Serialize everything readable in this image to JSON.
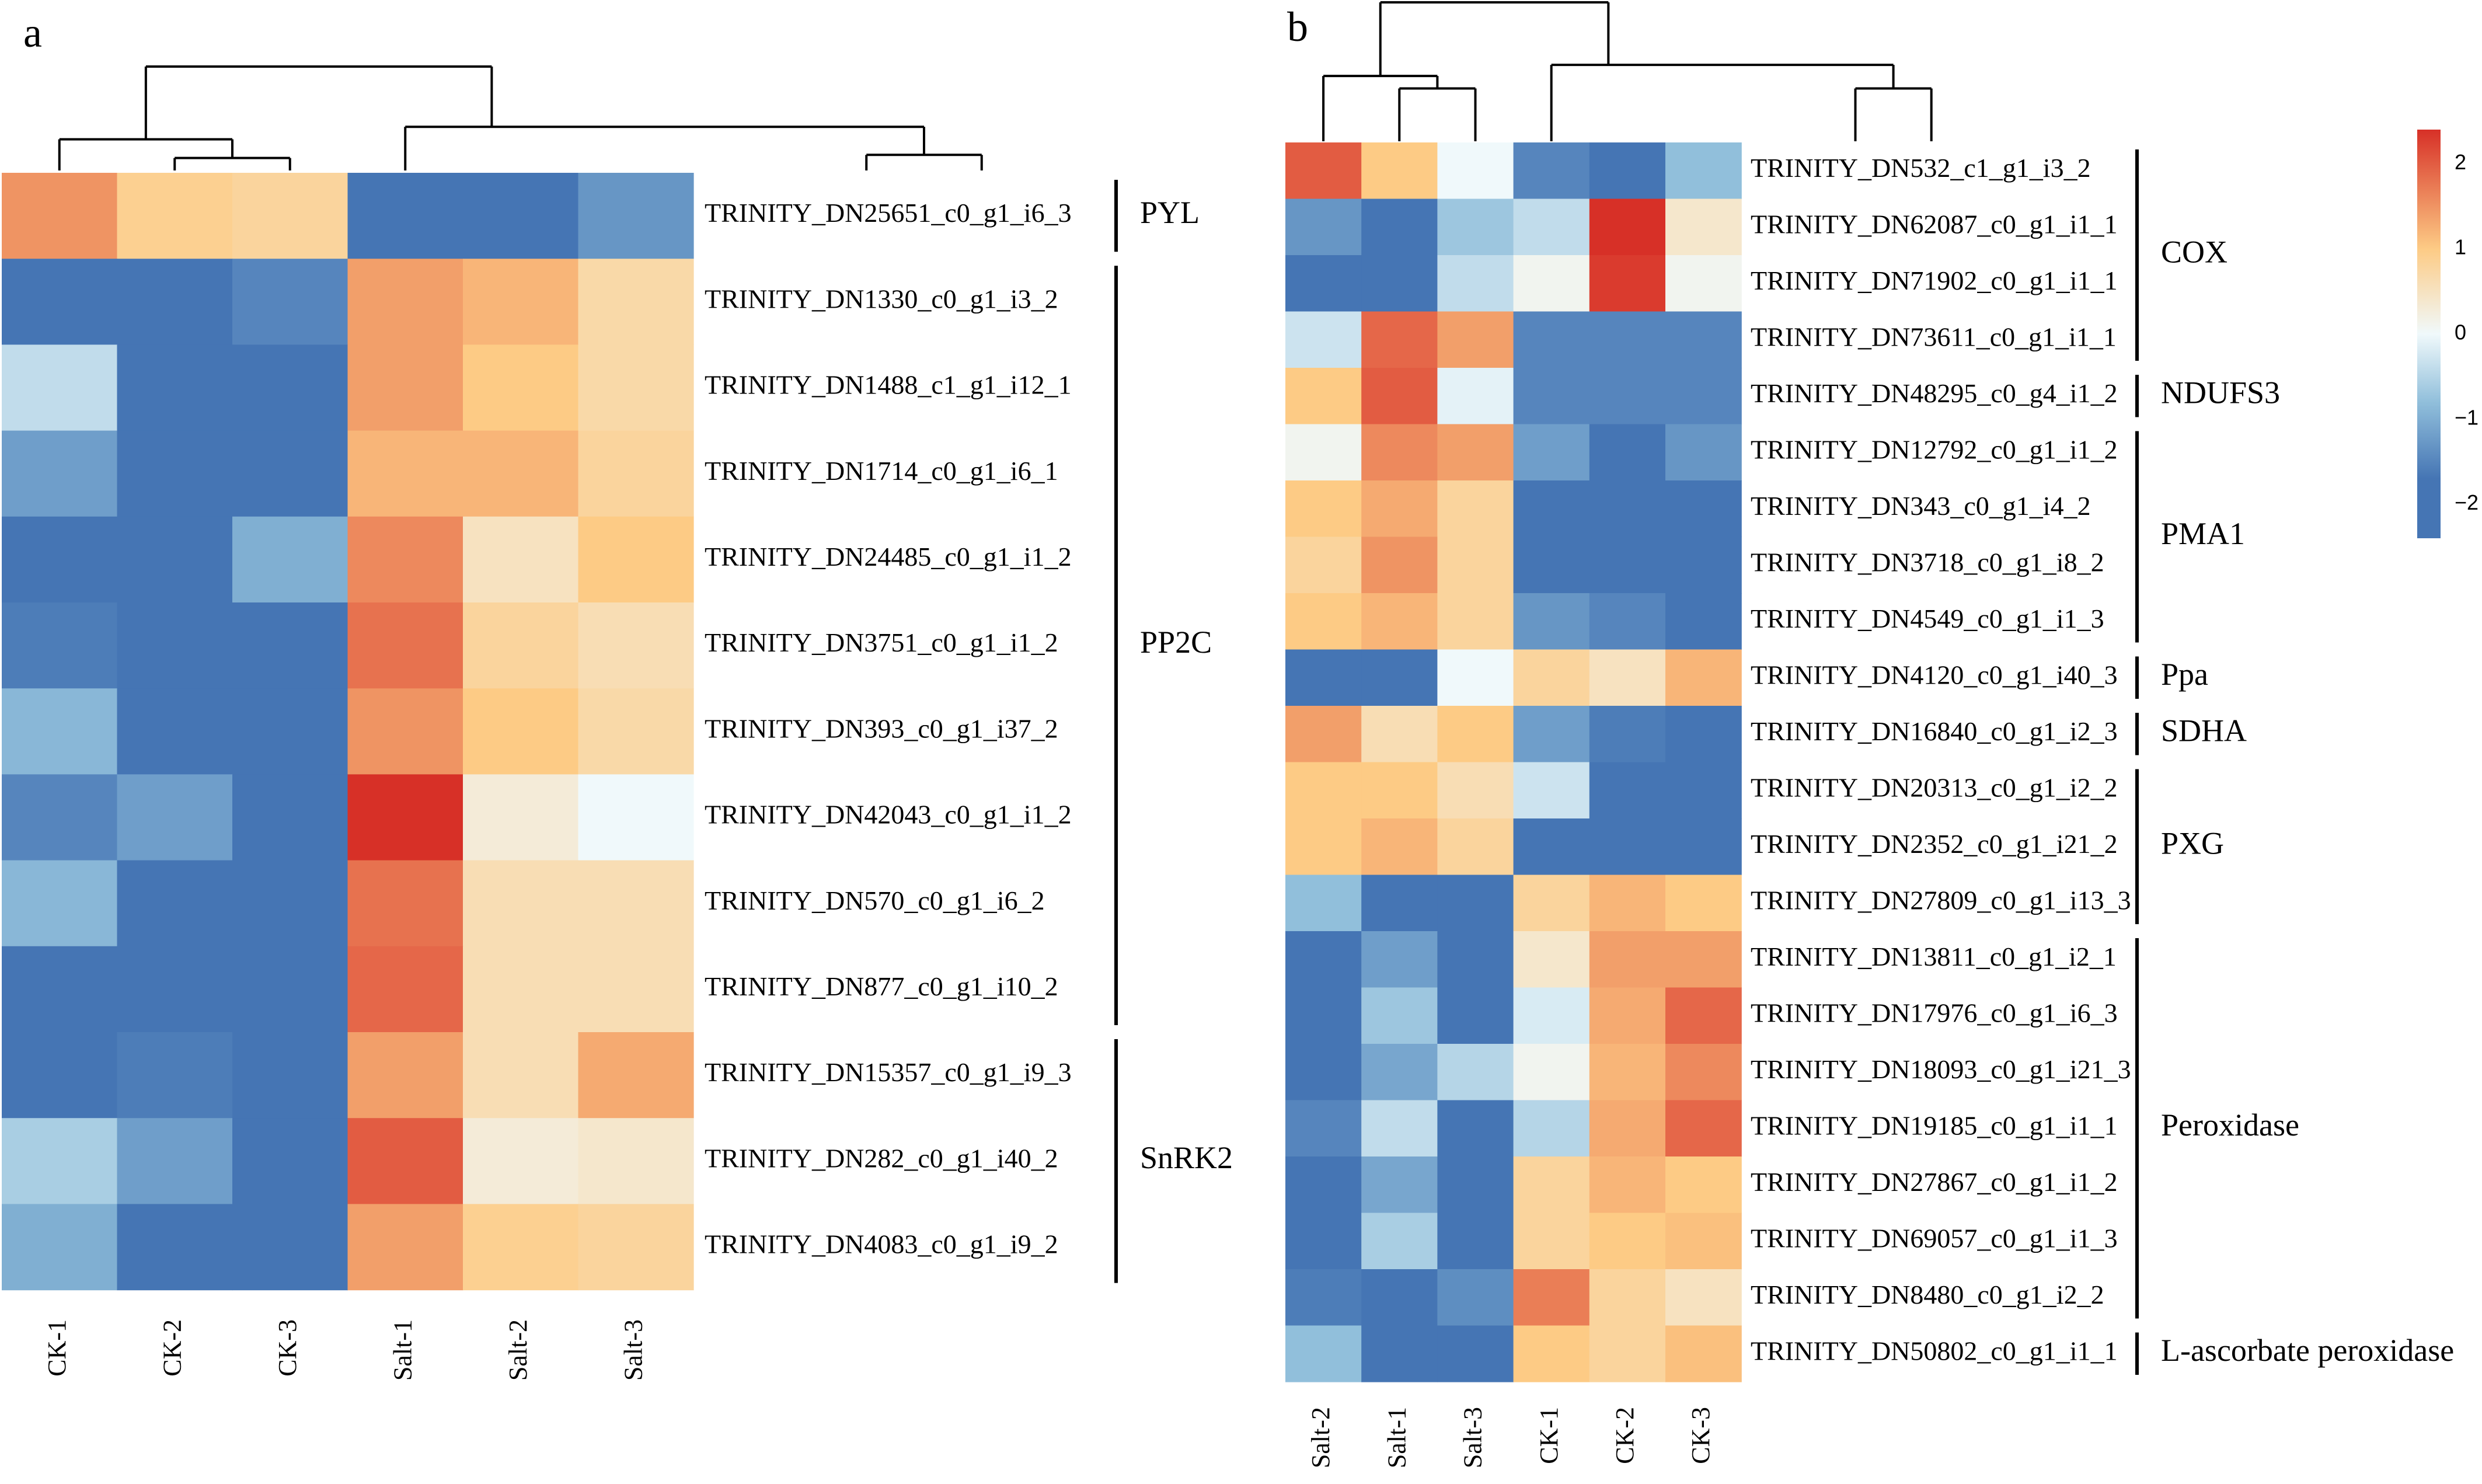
{
  "chart_data": [
    {
      "type": "heatmap",
      "panel": "a",
      "title": "",
      "columns": [
        "CK-1",
        "CK-2",
        "CK-3",
        "Salt-1",
        "Salt-2",
        "Salt-3"
      ],
      "rows": [
        "TRINITY_DN25651_c0_g1_i6_3",
        "TRINITY_DN1330_c0_g1_i3_2",
        "TRINITY_DN1488_c1_g1_i12_1",
        "TRINITY_DN1714_c0_g1_i6_1",
        "TRINITY_DN24485_c0_g1_i1_2",
        "TRINITY_DN3751_c0_g1_i1_2",
        "TRINITY_DN393_c0_g1_i37_2",
        "TRINITY_DN42043_c0_g1_i1_2",
        "TRINITY_DN570_c0_g1_i6_2",
        "TRINITY_DN877_c0_g1_i10_2",
        "TRINITY_DN15357_c0_g1_i9_3",
        "TRINITY_DN282_c0_g1_i40_2",
        "TRINITY_DN4083_c0_g1_i9_2"
      ],
      "values": [
        [
          1.5,
          0.9,
          0.8,
          -2.1,
          -2.1,
          -1.3
        ],
        [
          -2.1,
          -1.8,
          -1.5,
          1.4,
          1.2,
          0.7
        ],
        [
          -0.4,
          -2.1,
          -2.2,
          1.4,
          1.0,
          0.7
        ],
        [
          -1.2,
          -2.1,
          -2.1,
          1.2,
          1.2,
          0.8
        ],
        [
          -2.1,
          -2.1,
          -1.0,
          1.6,
          0.5,
          1.0
        ],
        [
          -1.6,
          -2.1,
          -1.8,
          1.8,
          0.8,
          0.6
        ],
        [
          -0.9,
          -2.1,
          -2.2,
          1.5,
          1.0,
          0.7
        ],
        [
          -1.5,
          -1.2,
          -1.8,
          2.4,
          0.3,
          0.0
        ],
        [
          -0.9,
          -2.1,
          -1.8,
          1.8,
          0.6,
          0.6
        ],
        [
          -1.9,
          -2.1,
          -1.7,
          1.9,
          0.6,
          0.6
        ],
        [
          -1.9,
          -1.6,
          -2.1,
          1.4,
          0.6,
          1.3
        ],
        [
          -0.6,
          -1.2,
          -2.1,
          2.0,
          0.3,
          0.4
        ],
        [
          -1.0,
          -2.1,
          -2.1,
          1.4,
          0.9,
          0.8
        ]
      ],
      "groups": [
        {
          "label": "PYL",
          "start": 0,
          "end": 0
        },
        {
          "label": "PP2C",
          "start": 1,
          "end": 9
        },
        {
          "label": "SnRK2",
          "start": 10,
          "end": 12
        }
      ],
      "col_dendrogram": "((CK-1,(CK-2,CK-3)),(Salt-1,(Salt-2,Salt-3)))"
    },
    {
      "type": "heatmap",
      "panel": "b",
      "title": "",
      "columns": [
        "Salt-2",
        "Salt-1",
        "Salt-3",
        "CK-1",
        "CK-2",
        "CK-3"
      ],
      "rows": [
        "TRINITY_DN532_c1_g1_i3_2",
        "TRINITY_DN62087_c0_g1_i1_1",
        "TRINITY_DN71902_c0_g1_i1_1",
        "TRINITY_DN73611_c0_g1_i1_1",
        "TRINITY_DN48295_c0_g4_i1_2",
        "TRINITY_DN12792_c0_g1_i1_2",
        "TRINITY_DN343_c0_g1_i4_2",
        "TRINITY_DN3718_c0_g1_i8_2",
        "TRINITY_DN4549_c0_g1_i1_3",
        "TRINITY_DN4120_c0_g1_i40_3",
        "TRINITY_DN16840_c0_g1_i2_3",
        "TRINITY_DN20313_c0_g1_i2_2",
        "TRINITY_DN2352_c0_g1_i21_2",
        "TRINITY_DN27809_c0_g1_i13_3",
        "TRINITY_DN13811_c0_g1_i2_1",
        "TRINITY_DN17976_c0_g1_i6_3",
        "TRINITY_DN18093_c0_g1_i21_3",
        "TRINITY_DN19185_c0_g1_i1_1",
        "TRINITY_DN27867_c0_g1_i1_2",
        "TRINITY_DN69057_c0_g1_i1_3",
        "TRINITY_DN8480_c0_g1_i2_2",
        "TRINITY_DN50802_c0_g1_i1_1"
      ],
      "values": [
        [
          2.0,
          1.0,
          0.0,
          -1.5,
          -2.1,
          -0.8
        ],
        [
          -1.3,
          -1.7,
          -0.7,
          -0.4,
          2.4,
          0.4
        ],
        [
          -2.1,
          -1.8,
          -0.4,
          0.1,
          2.3,
          0.1
        ],
        [
          -0.3,
          1.9,
          1.4,
          -1.5,
          -1.5,
          -1.5
        ],
        [
          1.0,
          2.0,
          -0.1,
          -1.5,
          -1.5,
          -1.5
        ],
        [
          0.1,
          1.6,
          1.4,
          -1.2,
          -2.1,
          -1.3
        ],
        [
          1.0,
          1.3,
          0.8,
          -1.7,
          -2.1,
          -2.1
        ],
        [
          0.8,
          1.5,
          0.8,
          -1.7,
          -2.1,
          -2.1
        ],
        [
          1.0,
          1.2,
          0.8,
          -1.3,
          -1.5,
          -2.1
        ],
        [
          -2.1,
          -1.7,
          0.0,
          0.8,
          0.5,
          1.2
        ],
        [
          1.4,
          0.6,
          1.0,
          -1.2,
          -1.6,
          -2.1
        ],
        [
          1.0,
          1.0,
          0.6,
          -0.3,
          -2.1,
          -2.1
        ],
        [
          1.0,
          1.2,
          0.8,
          -2.0,
          -2.0,
          -1.7
        ],
        [
          -0.8,
          -2.1,
          -2.0,
          0.8,
          1.2,
          1.0
        ],
        [
          -1.9,
          -1.2,
          -2.0,
          0.4,
          1.4,
          1.4
        ],
        [
          -1.8,
          -0.7,
          -2.0,
          -0.2,
          1.3,
          1.9
        ],
        [
          -2.1,
          -1.1,
          -0.5,
          0.1,
          1.2,
          1.6
        ],
        [
          -1.5,
          -0.4,
          -2.0,
          -0.5,
          1.3,
          1.9
        ],
        [
          -2.0,
          -1.1,
          -1.7,
          0.8,
          1.2,
          1.0
        ],
        [
          -2.0,
          -0.6,
          -2.0,
          0.8,
          1.0,
          1.1
        ],
        [
          -1.6,
          -2.0,
          -1.4,
          1.7,
          0.8,
          0.5
        ],
        [
          -0.8,
          -2.0,
          -2.0,
          1.0,
          0.8,
          1.1
        ]
      ],
      "groups": [
        {
          "label": "COX",
          "start": 0,
          "end": 3
        },
        {
          "label": "NDUFS3",
          "start": 4,
          "end": 4
        },
        {
          "label": "PMA1",
          "start": 5,
          "end": 8
        },
        {
          "label": "Ppa",
          "start": 9,
          "end": 9
        },
        {
          "label": "SDHA",
          "start": 10,
          "end": 10
        },
        {
          "label": "PXG",
          "start": 11,
          "end": 13
        },
        {
          "label": "Peroxidase",
          "start": 14,
          "end": 20
        },
        {
          "label": "L-ascorbate peroxidase",
          "start": 21,
          "end": 21
        }
      ],
      "col_dendrogram": "((Salt-2,(Salt-1,Salt-3)),(CK-1,(CK-2,CK-3)))"
    }
  ],
  "panels": {
    "a": {
      "letter": "a"
    },
    "b": {
      "letter": "b"
    }
  },
  "colorbar": {
    "range": [
      -2.4,
      2.4
    ],
    "ticks": [
      2,
      1,
      0,
      -1,
      -2
    ],
    "tick_labels": [
      "2",
      "1",
      "0",
      "−1",
      "−2"
    ],
    "colors": {
      "low": "#4575b4",
      "mid_low": "#91bfdb",
      "mid": "#f0f9fb",
      "mid_high": "#fdcb85",
      "high": "#d73027"
    }
  }
}
